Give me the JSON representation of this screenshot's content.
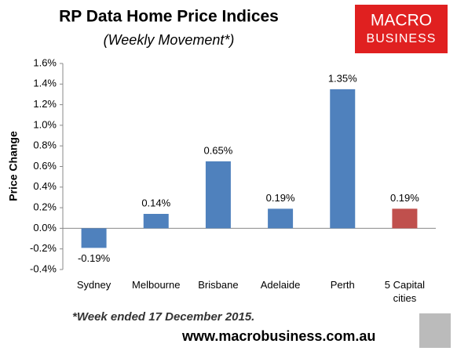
{
  "chart_data": {
    "type": "bar",
    "title": "RP Data Home Price Indices",
    "subtitle": "(Weekly Movement*)",
    "y_label": "Price Change",
    "categories": [
      "Sydney",
      "Melbourne",
      "Brisbane",
      "Adelaide",
      "Perth",
      "5 Capital cities"
    ],
    "values": [
      -0.19,
      0.14,
      0.65,
      0.19,
      1.35,
      0.19
    ],
    "value_labels": [
      "-0.19%",
      "0.14%",
      "0.65%",
      "0.19%",
      "1.35%",
      "0.19%"
    ],
    "colors": [
      "#4f81bd",
      "#4f81bd",
      "#4f81bd",
      "#4f81bd",
      "#4f81bd",
      "#c0504d"
    ],
    "ylim": [
      -0.4,
      1.6
    ],
    "yticks": [
      {
        "value": -0.4,
        "label": "-0.4%"
      },
      {
        "value": -0.2,
        "label": "-0.2%"
      },
      {
        "value": 0,
        "label": "0.0%"
      },
      {
        "value": 0.2,
        "label": "0.2%"
      },
      {
        "value": 0.4,
        "label": "0.4%"
      },
      {
        "value": 0.6,
        "label": "0.6%"
      },
      {
        "value": 0.8,
        "label": "0.8%"
      },
      {
        "value": 1.0,
        "label": "1.0%"
      },
      {
        "value": 1.2,
        "label": "1.2%"
      },
      {
        "value": 1.4,
        "label": "1.4%"
      },
      {
        "value": 1.6,
        "label": "1.6%"
      }
    ],
    "grid": false,
    "footnote": "*Week ended 17 December 2015.",
    "logo": {
      "line1": "MACRO",
      "line2": "BUSINESS"
    },
    "url": "www.macrobusiness.com.au"
  }
}
